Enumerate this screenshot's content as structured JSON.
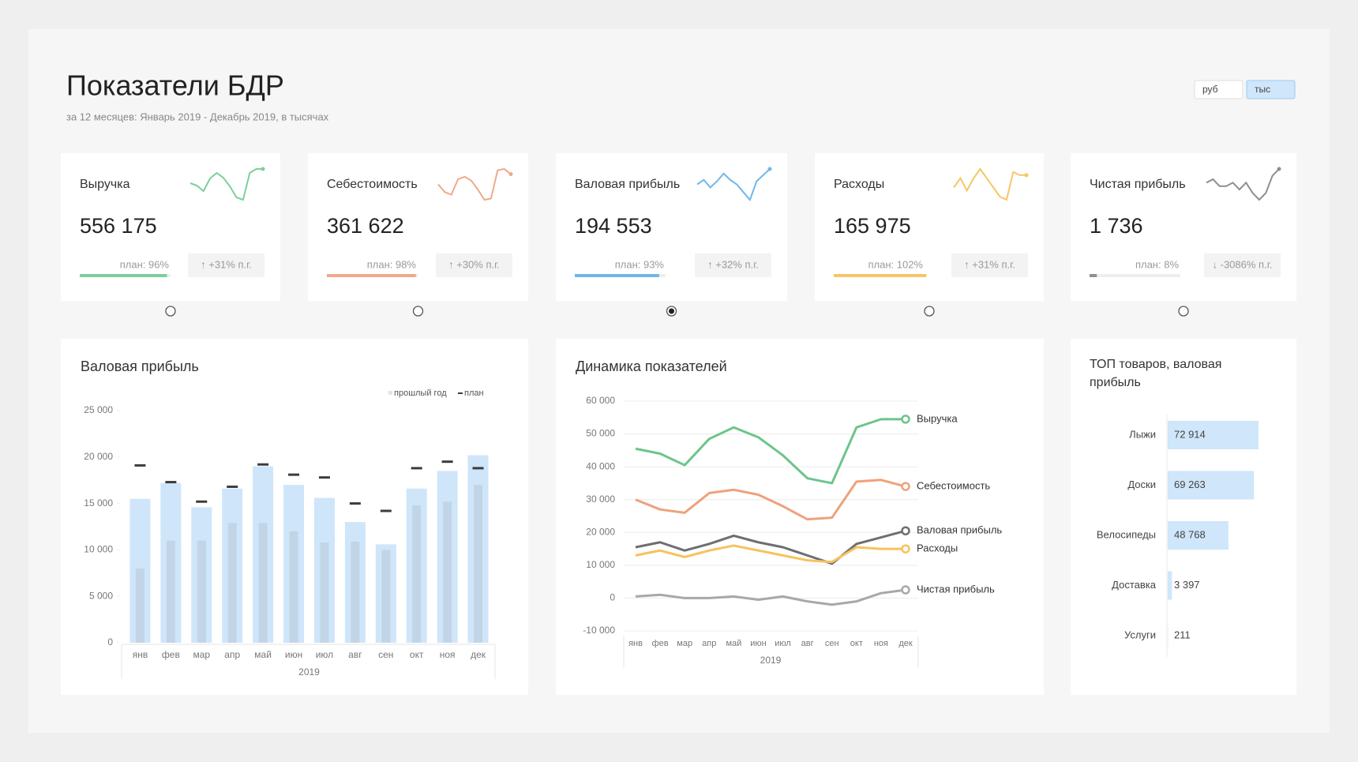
{
  "header": {
    "title": "Показатели БДР",
    "subtitle": "за 12 месяцев: Январь 2019 - Декабрь 2019, в тысячах",
    "units": [
      "руб",
      "тыс"
    ],
    "active_unit": 1
  },
  "kpis": {
    "selected": 2,
    "cards": [
      {
        "value": "556 175",
        "plan": 96,
        "plan_label": "план: 96%",
        "change": "↑ +31% п.г.",
        "color": "#7dcf9b"
      },
      {
        "value": "361 622",
        "plan": 98,
        "plan_label": "план: 98%",
        "change": "↑ +30% п.г.",
        "color": "#f0a98a"
      },
      {
        "value": "194 553",
        "plan": 93,
        "plan_label": "план: 93%",
        "change": "↑ +32% п.г.",
        "color": "#6fb8e8"
      },
      {
        "value": "165 975",
        "plan": 102,
        "plan_label": "план: 102%",
        "change": "↑ +31% п.г.",
        "color": "#f7c665"
      },
      {
        "value": "1 736",
        "plan": 8,
        "plan_label": "план: 8%",
        "change": "↓ -3086% п.г.",
        "color": "#8f8f8f"
      }
    ]
  },
  "chart_data": [
    {
      "type": "bar",
      "title": "Валовая прибыль",
      "xlabel": "2019",
      "categories": [
        "янв",
        "фев",
        "мар",
        "апр",
        "май",
        "июн",
        "июл",
        "авг",
        "сен",
        "окт",
        "ноя",
        "дек"
      ],
      "series": [
        {
          "color": "#cfe5fa",
          "values": [
            15500,
            17200,
            14600,
            16600,
            19000,
            17000,
            15600,
            13000,
            10600,
            16600,
            18500,
            20200
          ]
        },
        {
          "name": "прошлый год",
          "color": "#c2d5e7",
          "values": [
            8000,
            11000,
            11000,
            12900,
            12900,
            12000,
            10800,
            10900,
            10000,
            14800,
            15200,
            17000
          ]
        },
        {
          "name": "план",
          "color": "#3c3c3c",
          "values": [
            19100,
            17300,
            15200,
            16800,
            19200,
            18100,
            17800,
            15000,
            14200,
            18800,
            19500,
            18800
          ]
        }
      ],
      "ylim": [
        0,
        25000
      ],
      "yticks": [
        0,
        {
          "value": 5000,
          "label": "5 000"
        },
        {
          "value": 10000,
          "label": "10 000"
        },
        {
          "value": 15000,
          "label": "15 000"
        },
        {
          "value": 20000,
          "label": "20 000"
        },
        {
          "value": 25000,
          "label": "25 000"
        }
      ]
    },
    {
      "type": "line",
      "title": "Динамика показателей",
      "xlabel": "2019",
      "categories": [
        "янв",
        "фев",
        "мар",
        "апр",
        "май",
        "июн",
        "июл",
        "авг",
        "сен",
        "окт",
        "ноя",
        "дек"
      ],
      "series": [
        {
          "name": "Выручка",
          "color": "#6cc58a",
          "values": [
            45500,
            44000,
            40500,
            48500,
            52000,
            49000,
            43500,
            36500,
            35000,
            52000,
            54500,
            54500
          ]
        },
        {
          "name": "Себестоимость",
          "color": "#eea27a",
          "values": [
            30000,
            27000,
            26000,
            32000,
            33000,
            31500,
            28000,
            24000,
            24500,
            35500,
            36000,
            34000
          ]
        },
        {
          "name": "Валовая прибыль",
          "color": "#6e6e72",
          "values": [
            15500,
            17000,
            14500,
            16500,
            19000,
            17000,
            15500,
            13000,
            10500,
            16500,
            18500,
            20500
          ]
        },
        {
          "name": "Расходы",
          "color": "#f7c25c",
          "values": [
            13000,
            14500,
            12500,
            14500,
            16000,
            14500,
            13000,
            11500,
            11000,
            15500,
            15000,
            15000
          ]
        },
        {
          "name": "Чистая прибыль",
          "color": "#a8a8a8",
          "values": [
            500,
            1000,
            0,
            0,
            500,
            -500,
            500,
            -1000,
            -2000,
            -1000,
            1500,
            2500
          ]
        }
      ],
      "ylim": [
        -10000,
        60000
      ],
      "yticks": [
        {
          "value": -10000,
          "label": "-10 000"
        },
        0,
        {
          "value": 10000,
          "label": "10 000"
        },
        {
          "value": 20000,
          "label": "20 000"
        },
        {
          "value": 30000,
          "label": "30 000"
        },
        {
          "value": 40000,
          "label": "40 000"
        },
        {
          "value": 50000,
          "label": "50 000"
        },
        {
          "value": 60000,
          "label": "60 000"
        }
      ],
      "grid": true
    },
    {
      "type": "hbar",
      "title": "ТОП товаров, валовая прибыль",
      "categories": [
        "Лыжи",
        "Доски",
        "Велосипеды",
        "Доставка",
        "Услуги"
      ],
      "values": [
        72914,
        69263,
        48768,
        3397,
        211
      ],
      "value_labels": [
        "72 914",
        "69 263",
        "48 768",
        "3 397",
        "211"
      ],
      "color": "#cfe6fb"
    }
  ]
}
